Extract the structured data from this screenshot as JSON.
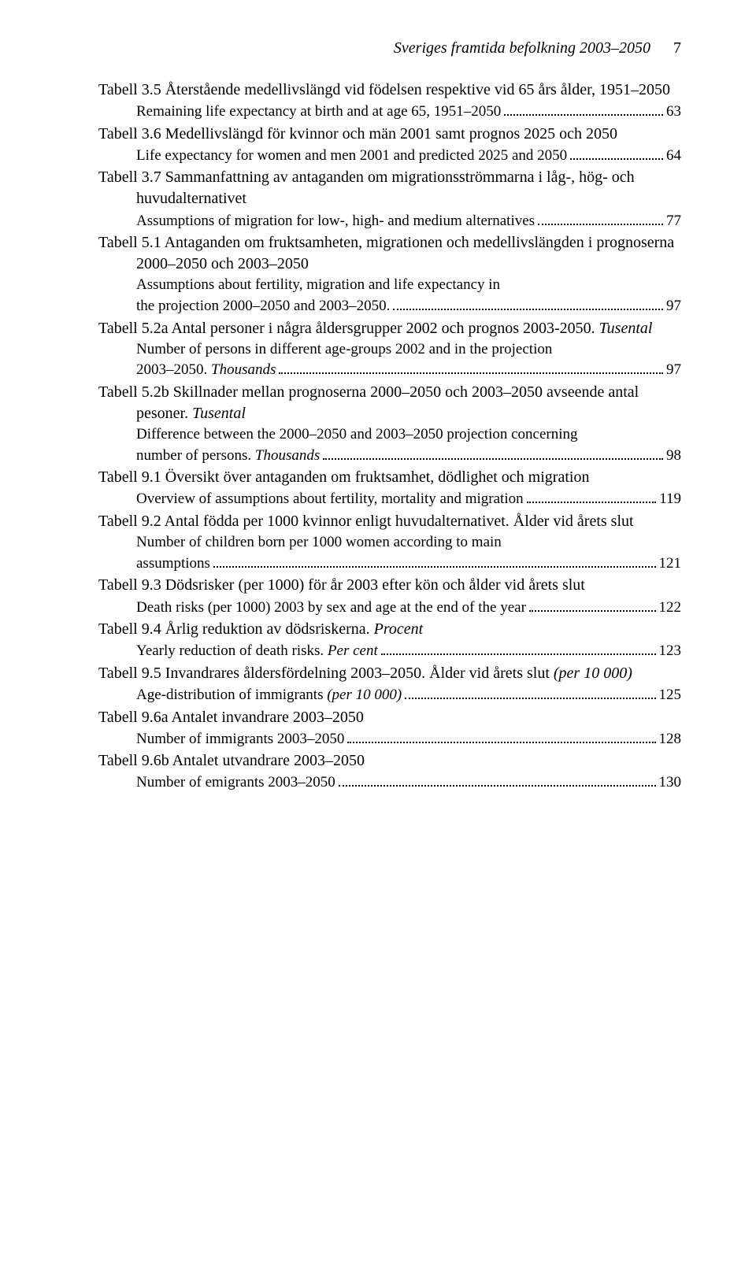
{
  "header": {
    "title": "Sveriges framtida befolkning 2003–2050",
    "page_number": "7"
  },
  "entries": [
    {
      "title": "Tabell 3.5 Återstående medellivslängd vid födelsen respektive vid 65 års ålder, 1951–2050",
      "subs": [
        {
          "text": "Remaining life expectancy at birth and at age 65, 1951–2050",
          "page": "63"
        }
      ]
    },
    {
      "title": "Tabell 3.6 Medellivslängd för kvinnor och män 2001 samt prognos 2025 och 2050",
      "subs": [
        {
          "text": "Life expectancy for women and men 2001 and predicted 2025 and 2050",
          "page": "64"
        }
      ]
    },
    {
      "title": "Tabell 3.7 Sammanfattning av antaganden om migrationsströmmarna i låg-, hög- och huvudalternativet",
      "subs": [
        {
          "text": "Assumptions of migration for low-, high- and medium alternatives",
          "page": "77"
        }
      ]
    },
    {
      "title": "Tabell 5.1 Antaganden om fruktsamheten, migrationen och medellivslängden i prognoserna 2000–2050 och 2003–2050",
      "subs": [
        {
          "text": "Assumptions about fertility, migration and life expectancy in",
          "page": null
        },
        {
          "text": "the projection 2000–2050 and 2003–2050.",
          "page": "97"
        }
      ]
    },
    {
      "title": "Tabell 5.2a Antal personer i några åldersgrupper 2002 och prognos 2003-2050.",
      "qualifier": " Tusental",
      "subs": [
        {
          "text": "Number of persons in different age-groups 2002 and in the projection",
          "page": null
        },
        {
          "text": "2003–2050. ",
          "italic_tail": "Thousands",
          "page": "97"
        }
      ]
    },
    {
      "title": "Tabell 5.2b Skillnader mellan prognoserna 2000–2050 och 2003–2050 avseende antal pesoner.",
      "qualifier": " Tusental",
      "subs": [
        {
          "text": "Difference between the 2000–2050 and 2003–2050 projection concerning",
          "page": null
        },
        {
          "text": "number of persons. ",
          "italic_tail": "Thousands",
          "page": "98"
        }
      ]
    },
    {
      "title": "Tabell 9.1 Översikt över antaganden om fruktsamhet, dödlighet och migration",
      "subs": [
        {
          "text": "Overview of assumptions about fertility, mortality and migration",
          "page": "119"
        }
      ]
    },
    {
      "title": "Tabell 9.2 Antal födda per 1000 kvinnor enligt huvudalternativet. Ålder vid årets slut",
      "subs": [
        {
          "text": "Number of children born per 1000 women according to main",
          "page": null
        },
        {
          "text": "assumptions",
          "page": "121"
        }
      ]
    },
    {
      "title": "Tabell 9.3 Dödsrisker (per 1000) för år 2003 efter kön och ålder vid årets slut",
      "subs": [
        {
          "text": "Death risks (per 1000) 2003 by sex and age at the end of the year",
          "page": "122"
        }
      ]
    },
    {
      "title": "Tabell 9.4 Årlig reduktion av dödsriskerna.",
      "qualifier": " Procent",
      "subs": [
        {
          "text": "Yearly reduction of death risks. ",
          "italic_tail": "Per cent",
          "page": "123"
        }
      ]
    },
    {
      "title": "Tabell 9.5 Invandrares åldersfördelning 2003–2050. Ålder vid årets slut",
      "qualifier": " (per 10 000)",
      "subs": [
        {
          "text": "Age-distribution of immigrants ",
          "italic_tail": "(per 10 000)",
          "page": "125"
        }
      ]
    },
    {
      "title": "Tabell 9.6a Antalet invandrare 2003–2050",
      "subs": [
        {
          "text": "Number of immigrants 2003–2050",
          "page": "128"
        }
      ]
    },
    {
      "title": "Tabell 9.6b Antalet utvandrare 2003–2050",
      "subs": [
        {
          "text": "Number of emigrants 2003–2050",
          "page": "130"
        }
      ]
    }
  ]
}
